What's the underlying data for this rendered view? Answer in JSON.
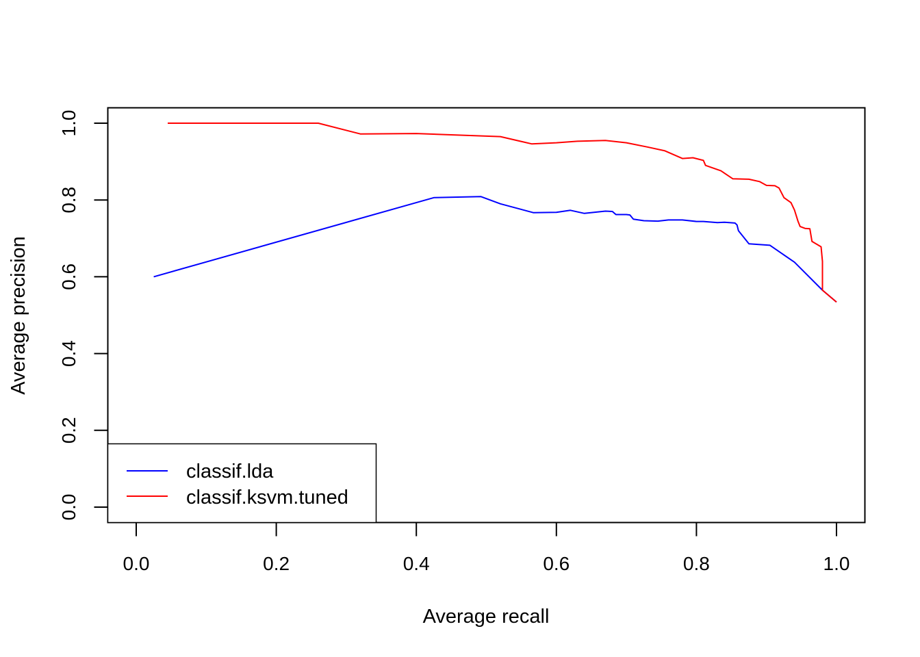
{
  "chart_data": {
    "type": "line",
    "title": "",
    "xlabel": "Average recall",
    "ylabel": "Average precision",
    "xlim": [
      0.0,
      1.0
    ],
    "ylim": [
      0.0,
      1.0
    ],
    "x_ticks": [
      "0.0",
      "0.2",
      "0.4",
      "0.6",
      "0.8",
      "1.0"
    ],
    "y_ticks": [
      "0.0",
      "0.2",
      "0.4",
      "0.6",
      "0.8",
      "1.0"
    ],
    "grid": false,
    "legend_position": "bottom-left",
    "series": [
      {
        "name": "classif.lda",
        "color": "#0000ff",
        "x": [
          0.025,
          0.425,
          0.492,
          0.52,
          0.567,
          0.6,
          0.62,
          0.64,
          0.67,
          0.68,
          0.685,
          0.7,
          0.705,
          0.71,
          0.725,
          0.745,
          0.76,
          0.78,
          0.8,
          0.81,
          0.83,
          0.84,
          0.855,
          0.858,
          0.86,
          0.875,
          0.905,
          0.92,
          0.94,
          0.98,
          1.0
        ],
        "y": [
          0.6,
          0.806,
          0.809,
          0.79,
          0.767,
          0.768,
          0.773,
          0.765,
          0.771,
          0.77,
          0.762,
          0.762,
          0.761,
          0.75,
          0.746,
          0.745,
          0.748,
          0.748,
          0.744,
          0.744,
          0.741,
          0.742,
          0.74,
          0.735,
          0.72,
          0.686,
          0.682,
          0.663,
          0.638,
          0.565,
          0.534
        ]
      },
      {
        "name": "classif.ksvm.tuned",
        "color": "#ff0000",
        "x": [
          0.045,
          0.26,
          0.32,
          0.4,
          0.52,
          0.565,
          0.6,
          0.63,
          0.67,
          0.7,
          0.73,
          0.755,
          0.78,
          0.795,
          0.81,
          0.813,
          0.835,
          0.852,
          0.875,
          0.89,
          0.9,
          0.912,
          0.918,
          0.925,
          0.935,
          0.94,
          0.945,
          0.948,
          0.955,
          0.962,
          0.965,
          0.978,
          0.98,
          0.98,
          1.0
        ],
        "y": [
          1.0,
          1.0,
          0.972,
          0.973,
          0.965,
          0.946,
          0.949,
          0.953,
          0.955,
          0.949,
          0.938,
          0.928,
          0.908,
          0.91,
          0.903,
          0.89,
          0.876,
          0.855,
          0.854,
          0.848,
          0.838,
          0.837,
          0.831,
          0.806,
          0.793,
          0.774,
          0.745,
          0.731,
          0.726,
          0.725,
          0.692,
          0.678,
          0.64,
          0.565,
          0.534
        ]
      }
    ]
  }
}
